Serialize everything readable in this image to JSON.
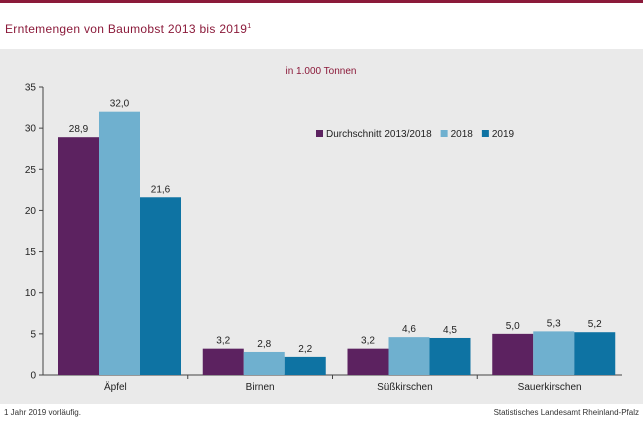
{
  "header": {
    "title": "Erntemengen von Baumobst 2013 bis 2019",
    "title_footnote_mark": "1"
  },
  "footer": {
    "footnote": "1 Jahr 2019 vorläufig.",
    "source": "Statistisches Landesamt Rheinland-Pfalz"
  },
  "colors": {
    "accent": "#8b1a3a",
    "avg": "#5c2260",
    "y2018": "#6fb0cf",
    "y2019": "#0e73a3",
    "panel": "#eaeaea"
  },
  "chart_data": {
    "type": "bar",
    "title": "",
    "subtitle": "in 1.000 Tonnen",
    "xlabel": "",
    "ylabel": "",
    "categories": [
      "Äpfel",
      "Birnen",
      "Süßkirschen",
      "Sauerkirschen"
    ],
    "series": [
      {
        "name": "Durchschnitt 2013/2018",
        "values": [
          28.9,
          3.2,
          3.2,
          5.0
        ],
        "labels": [
          "28,9",
          "3,2",
          "3,2",
          "5,0"
        ],
        "color": "#5c2260"
      },
      {
        "name": "2018",
        "values": [
          32.0,
          2.8,
          4.6,
          5.3
        ],
        "labels": [
          "32,0",
          "2,8",
          "4,6",
          "5,3"
        ],
        "color": "#6fb0cf"
      },
      {
        "name": "2019",
        "values": [
          21.6,
          2.2,
          4.5,
          5.2
        ],
        "labels": [
          "21,6",
          "2,2",
          "4,5",
          "5,2"
        ],
        "color": "#0e73a3"
      }
    ],
    "ylim": [
      0,
      35
    ],
    "yticks": [
      0,
      5,
      10,
      15,
      20,
      25,
      30,
      35
    ],
    "grid": false,
    "legend_position": "top-right"
  }
}
